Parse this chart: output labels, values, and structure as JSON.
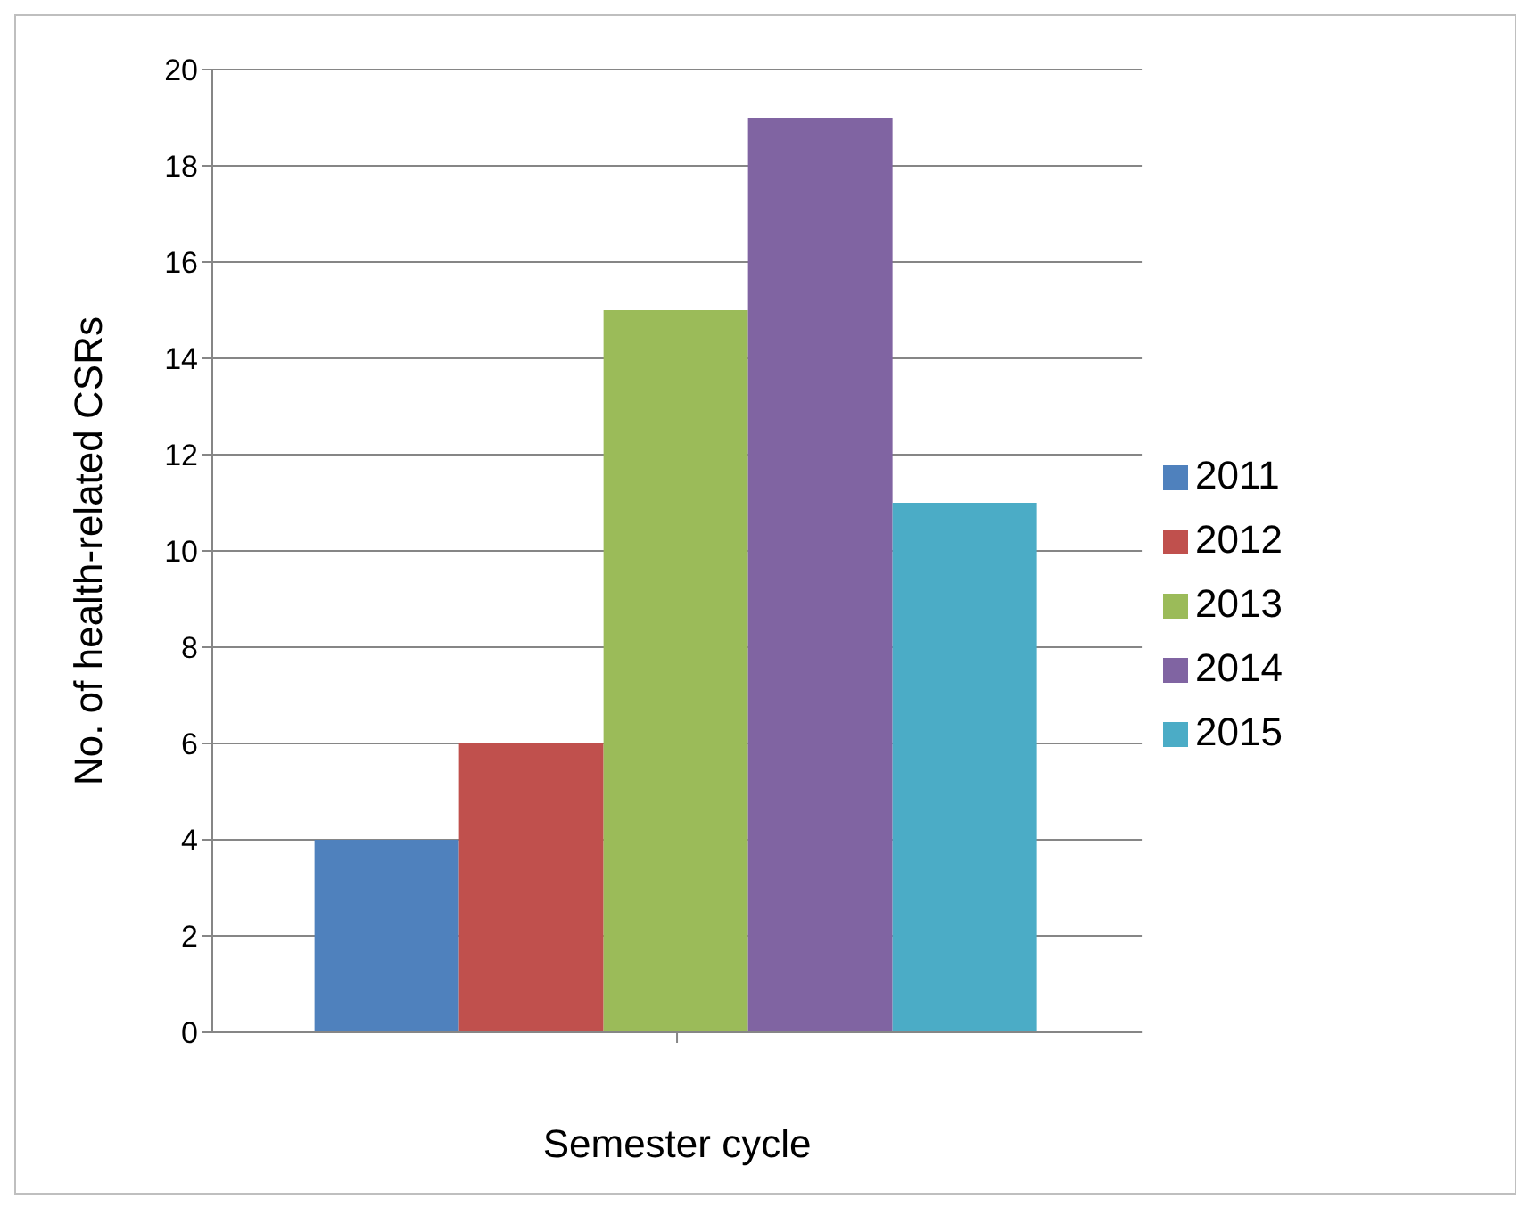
{
  "chart_data": {
    "type": "bar",
    "xlabel": "Semester cycle",
    "ylabel": "No. of health-related CSRs",
    "categories": [
      null
    ],
    "series": [
      {
        "name": "2011",
        "color": "#4f81bd",
        "values": [
          4
        ]
      },
      {
        "name": "2012",
        "color": "#c0504d",
        "values": [
          6
        ]
      },
      {
        "name": "2013",
        "color": "#9bbb59",
        "values": [
          15
        ]
      },
      {
        "name": "2014",
        "color": "#8064a2",
        "values": [
          19
        ]
      },
      {
        "name": "2015",
        "color": "#4bacc6",
        "values": [
          11
        ]
      }
    ],
    "ylim": [
      0,
      20
    ],
    "yticks": [
      0,
      2,
      4,
      6,
      8,
      10,
      12,
      14,
      16,
      18,
      20
    ],
    "grid": "y",
    "legend": "right"
  }
}
